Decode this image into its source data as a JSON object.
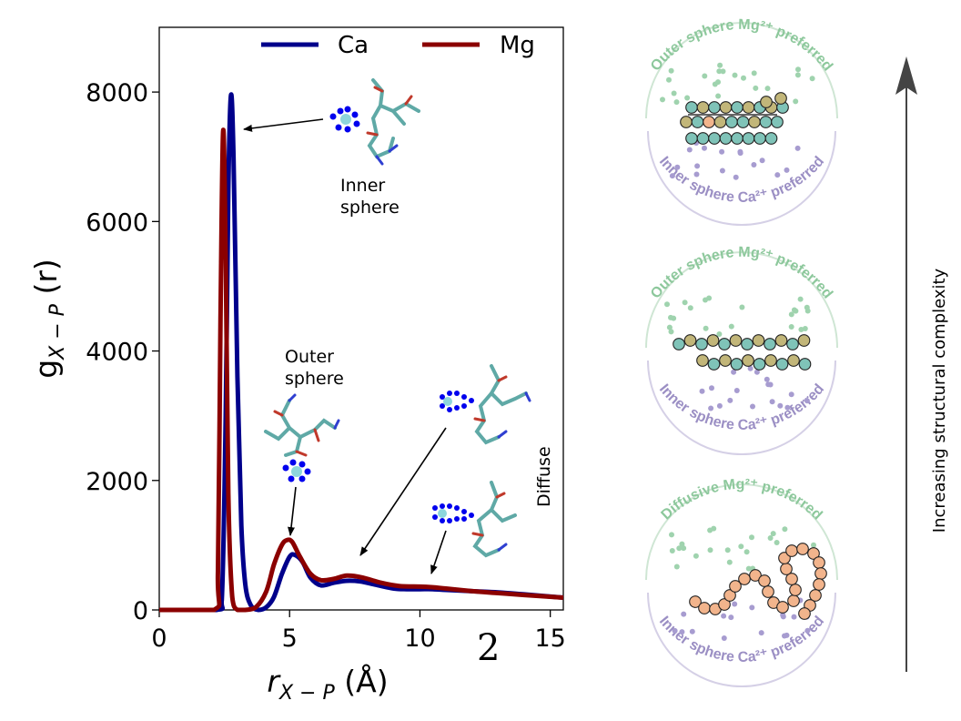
{
  "chart_data": {
    "type": "line",
    "xlabel": "r_{X-P} (Å)",
    "ylabel": "g_{X-P} (r)",
    "xlim": [
      0,
      15.5
    ],
    "ylim": [
      0,
      9000
    ],
    "x_ticks": [
      "0",
      "5",
      "10",
      "15"
    ],
    "y_ticks": [
      "0",
      "2000",
      "4000",
      "6000",
      "8000"
    ],
    "legend": "top",
    "grid": false,
    "series": [
      {
        "name": "Ca",
        "color": "#00008b",
        "x": [
          0,
          2.2,
          2.4,
          2.55,
          2.65,
          2.75,
          2.85,
          3.0,
          3.15,
          3.3,
          3.5,
          3.8,
          4.1,
          4.4,
          4.7,
          5.0,
          5.2,
          5.5,
          5.8,
          6.2,
          6.7,
          7.2,
          7.7,
          8.3,
          9.0,
          9.5,
          10.0,
          10.5,
          11.0,
          12.0,
          13.0,
          14.0,
          15.5
        ],
        "y": [
          0,
          0,
          150,
          3000,
          6500,
          7950,
          7000,
          3600,
          1300,
          400,
          80,
          0,
          40,
          200,
          550,
          820,
          850,
          740,
          500,
          380,
          420,
          450,
          440,
          390,
          330,
          320,
          320,
          320,
          310,
          290,
          270,
          240,
          190
        ]
      },
      {
        "name": "Mg",
        "color": "#8b0000",
        "x": [
          0,
          2.1,
          2.25,
          2.35,
          2.45,
          2.55,
          2.65,
          2.8,
          3.0,
          3.3,
          3.7,
          4.1,
          4.4,
          4.7,
          4.9,
          5.1,
          5.4,
          5.8,
          6.2,
          6.7,
          7.2,
          7.8,
          8.5,
          9.2,
          10.0,
          10.5,
          11.0,
          12.0,
          13.0,
          14.0,
          15.5
        ],
        "y": [
          0,
          0,
          600,
          4500,
          7400,
          5500,
          1800,
          200,
          0,
          0,
          40,
          280,
          700,
          1000,
          1080,
          1050,
          820,
          560,
          460,
          480,
          530,
          500,
          420,
          370,
          360,
          350,
          330,
          290,
          260,
          230,
          190
        ]
      }
    ],
    "annotations": [
      {
        "text": "Inner\nsphere"
      },
      {
        "text": "Outer\nsphere"
      },
      {
        "text": "Diffuse"
      }
    ]
  },
  "legend": {
    "ca": "Ca",
    "mg": "Mg"
  },
  "labels": {
    "inner_sphere": [
      "Inner",
      "sphere"
    ],
    "outer_sphere": [
      "Outer",
      "sphere"
    ],
    "diffuse": "Diffuse",
    "panel_number": "2",
    "complexity_axis": "Increasing structural complexity"
  },
  "schematics": [
    {
      "top_label": "Outer sphere Mg²⁺ preferred",
      "bottom_label": "Inner sphere Ca²⁺ preferred",
      "chain": "double-strand"
    },
    {
      "top_label": "Outer sphere Mg²⁺ preferred",
      "bottom_label": "Inner sphere Ca²⁺ preferred",
      "chain": "double-strand"
    },
    {
      "top_label": "Diffusive Mg²⁺ preferred",
      "bottom_label": "Inner sphere Ca²⁺ preferred",
      "chain": "coil"
    }
  ],
  "colors": {
    "mg_label": "#8dc89c",
    "ca_label": "#9b8fc4",
    "bead_teal": "#7fc3b8",
    "bead_olive": "#c2b679",
    "bead_salmon": "#f2b48c",
    "arrow_gray": "#444444"
  }
}
